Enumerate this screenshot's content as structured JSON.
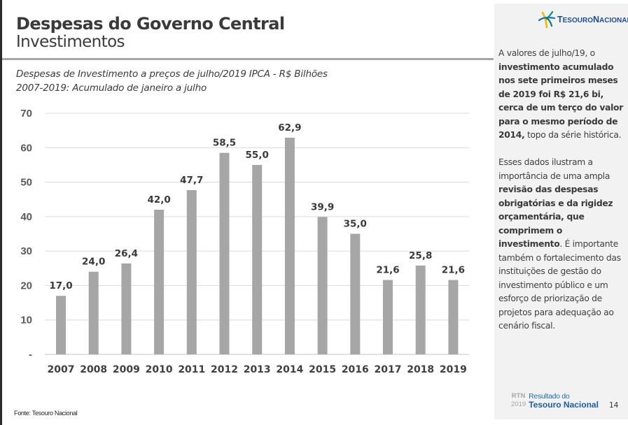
{
  "header": {
    "title": "Despesas do Governo Central",
    "subtitle": "Investimentos"
  },
  "chart_caption": {
    "line1": "Despesas de Investimento a preços de julho/2019 IPCA - R$ Bilhões",
    "line2": "2007-2019: Acumulado de janeiro a julho"
  },
  "chart_data": {
    "type": "bar",
    "title": "Despesas de Investimento a preços de julho/2019 IPCA - R$ Bilhões",
    "subtitle": "2007-2019: Acumulado de janeiro a julho",
    "xlabel": "",
    "ylabel": "R$ Bilhões",
    "categories": [
      "2007",
      "2008",
      "2009",
      "2010",
      "2011",
      "2012",
      "2013",
      "2014",
      "2015",
      "2016",
      "2017",
      "2018",
      "2019"
    ],
    "values": [
      17.0,
      24.0,
      26.4,
      42.0,
      47.7,
      58.5,
      55.0,
      62.9,
      39.9,
      35.0,
      21.6,
      25.8,
      21.6
    ],
    "data_labels": [
      "17,0",
      "24,0",
      "26,4",
      "42,0",
      "47,7",
      "58,5",
      "55,0",
      "62,9",
      "39,9",
      "35,0",
      "21,6",
      "25,8",
      "21,6"
    ],
    "ylim": [
      0,
      70
    ],
    "yticks": [
      0,
      10,
      20,
      30,
      40,
      50,
      60,
      70
    ],
    "ytick_labels": [
      "-",
      "10",
      "20",
      "30",
      "40",
      "50",
      "60",
      "70"
    ],
    "grid": true,
    "legend": "none",
    "bar_color": "#a6a6a6",
    "grid_color": "#d9d9d9"
  },
  "source": "Fonte: Tesouro Nacional",
  "sidebar": {
    "logo": {
      "text_part1_cap": "T",
      "text_part1": "ESOURO",
      "text_part2_cap": "N",
      "text_part2": "ACIONAL"
    },
    "para1": {
      "t1": "A valores de julho/19, o ",
      "b1": "investimento acumulado nos sete primeiros meses de 2019 foi R$ 21,6 bi, cerca de um terço do valor para o mesmo período de 2014,",
      "t2": " topo da série histórica."
    },
    "para2": {
      "t1": "Esses dados ilustram a importância de uma ampla ",
      "b1": "revisão das despesas obrigatórias e da rigidez orçamentária, que comprimem o investimento",
      "t2": ". É importante também o fortalecimento das instituições de gestão do investimento público e um esforço de priorização de projetos para adequação ao cenário fiscal."
    },
    "footer": {
      "rtn": "RTN",
      "year": "2019",
      "line1": "Resultado do",
      "line2": "Tesouro Nacional",
      "page": "14"
    }
  }
}
